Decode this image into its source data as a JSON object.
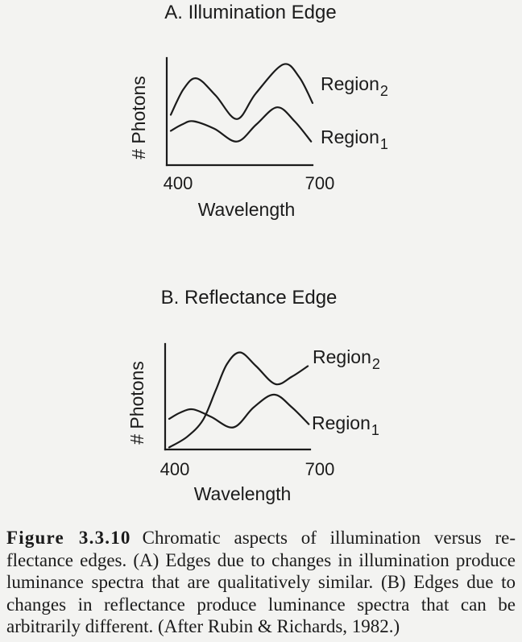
{
  "colors": {
    "background": "#f3f3f1",
    "ink": "#1b1b1b"
  },
  "chart_data": [
    {
      "type": "line",
      "title": "A. Illumination Edge",
      "xlabel": "Wavelength",
      "ylabel": "# Photons",
      "xlim": [
        400,
        700
      ],
      "ylim": [
        0,
        100
      ],
      "xticks": [
        400,
        700
      ],
      "grid": false,
      "series": [
        {
          "label": "Region",
          "subscript": "2",
          "x": [
            400,
            427,
            455,
            495,
            540,
            580,
            638,
            672,
            700
          ],
          "y": [
            47,
            71,
            81,
            65,
            43,
            67,
            94,
            82,
            58
          ]
        },
        {
          "label": "Region",
          "subscript": "1",
          "x": [
            400,
            424,
            448,
            492,
            540,
            581,
            625,
            662,
            697
          ],
          "y": [
            32,
            38,
            41,
            34,
            22,
            38,
            54,
            41,
            22
          ]
        }
      ]
    },
    {
      "type": "line",
      "title": "B. Reflectance Edge",
      "xlabel": "Wavelength",
      "ylabel": "# Photons",
      "xlim": [
        400,
        700
      ],
      "ylim": [
        0,
        100
      ],
      "xticks": [
        400,
        700
      ],
      "grid": false,
      "series": [
        {
          "label": "Region",
          "subscript": "2",
          "x": [
            400,
            438,
            472,
            499,
            523,
            551,
            585,
            626,
            661,
            695
          ],
          "y": [
            2,
            12,
            28,
            56,
            81,
            92,
            79,
            62,
            69,
            79
          ]
        },
        {
          "label": "Region",
          "subscript": "1",
          "x": [
            400,
            424,
            451,
            489,
            537,
            580,
            623,
            661,
            697
          ],
          "y": [
            29,
            35,
            38,
            31,
            21,
            40,
            52,
            40,
            24
          ]
        }
      ]
    }
  ],
  "caption": {
    "figure_label": "Figure 3.3.10",
    "lines": [
      "Chromatic aspects of illumination versus re-",
      "flectance edges. (A) Edges due to changes in illumination produce",
      "luminance spectra that are qualitatively similar. (B) Edges due to",
      "changes in reflectance produce luminance spectra that can be",
      "arbitrarily different. (After Rubin & Richards, 1982.)"
    ]
  }
}
